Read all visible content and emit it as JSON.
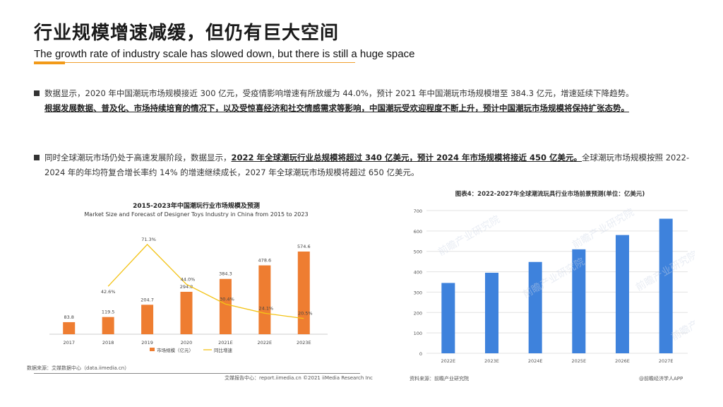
{
  "header": {
    "title_zh": "行业规模增速减缓，但仍有巨大空间",
    "title_en": "The growth rate of industry scale has slowed down, but there is still a huge space"
  },
  "bullets": {
    "b1_text": "数据显示，2020 年中国潮玩市场规模接近 300 亿元，受疫情影响增速有所放缓为 44.0%，预计 2021 年中国潮玩市场规模增至 384.3 亿元，增速延续下降趋势。",
    "b1_bold": "根据发展数据、普及化、市场持续培育的情况下，以及受惊喜经济和社交情感需求等影响，中国潮玩受欢迎程度不断上升，预计中国潮玩市场规模将保持扩张态势。",
    "b2_pre": "同时全球潮玩市场仍处于高速发展阶段，数据显示，",
    "b2_bold": "2022 年全球潮玩行业总规模将超过 340 亿美元，预计 2024 年市场规模将接近 450 亿美元。",
    "b2_post": "全球潮玩市场规模按照 2022-2024 年的年均符复合增长率约 14% 的增速继续成长，2027 年全球潮玩市场规模将超过 650 亿美元。"
  },
  "chart1_meta": {
    "title": "2015-2023年中国潮玩行业市场规模及预测",
    "subtitle": "Market Size and Forecast of Designer Toys Industry in China from 2015 to 2023",
    "legend_bar": "市场规模（亿元）",
    "legend_line": "同比增速",
    "source": "数据来源：艾媒数据中心（data.iimedia.cn）",
    "footer": "艾媒报告中心：report.iimedia.cn  ©2021  iiMedia Research  Inc"
  },
  "chart2_meta": {
    "title": "图表4：2022-2027年全球潮流玩具行业市场前景预测(单位：亿美元)",
    "source": "资料来源：前瞻产业研究院",
    "watermark": "前瞻产业研究院",
    "credit": "@前瞻经济学人APP"
  },
  "colors": {
    "accent": "#f29a18",
    "bar_orange": "#ee7d31",
    "line_yellow": "#f3c316",
    "bar_blue": "#3e82dc"
  },
  "chart_data": [
    {
      "type": "bar",
      "title": "2015-2023年中国潮玩行业市场规模及预测",
      "categories": [
        "2017",
        "2018",
        "2019",
        "2020",
        "2021E",
        "2022E",
        "2023E"
      ],
      "series": [
        {
          "name": "市场规模（亿元）",
          "type": "bar",
          "values": [
            83.8,
            119.5,
            204.7,
            294.8,
            384.3,
            478.6,
            574.6
          ],
          "labels": [
            "83.8",
            "119.5",
            "204.7",
            "294.8",
            "384.3",
            "478.6",
            "574.6"
          ]
        },
        {
          "name": "同比增速",
          "type": "line",
          "values": [
            null,
            42.6,
            71.3,
            44.0,
            30.4,
            24.1,
            20.5
          ],
          "labels": [
            "",
            "42.6%",
            "71.3%",
            "44.0%",
            "30.4%",
            "24.1%",
            "20.5%"
          ]
        }
      ]
    },
    {
      "type": "bar",
      "title": "图表4：2022-2027年全球潮流玩具行业市场前景预测(单位：亿美元)",
      "categories": [
        "2022E",
        "2023E",
        "2024E",
        "2025E",
        "2026E",
        "2027E"
      ],
      "values": [
        345,
        395,
        448,
        510,
        580,
        660
      ],
      "ylim": [
        0,
        700
      ],
      "yticks": [
        "0",
        "100",
        "200",
        "300",
        "400",
        "500",
        "600",
        "700"
      ],
      "grid": true
    }
  ]
}
